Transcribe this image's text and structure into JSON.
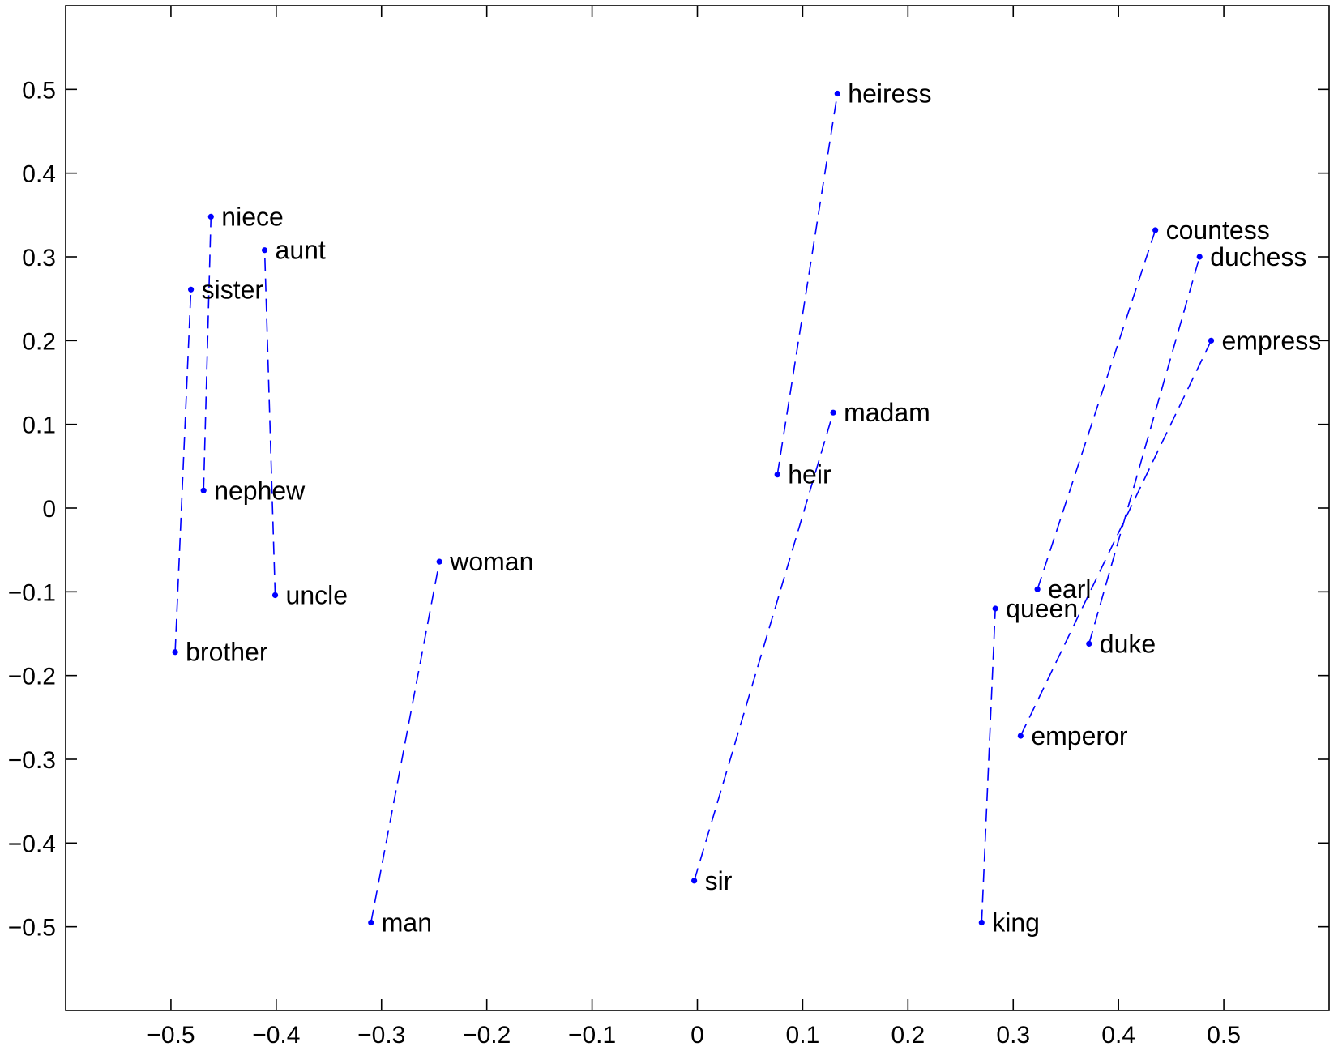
{
  "chart_data": {
    "type": "scatter",
    "title": "",
    "xlabel": "",
    "ylabel": "",
    "xlim": [
      -0.6,
      0.6
    ],
    "ylim": [
      -0.6,
      0.6
    ],
    "xticks": [
      -0.5,
      -0.4,
      -0.3,
      -0.2,
      -0.1,
      0,
      0.1,
      0.2,
      0.3,
      0.4,
      0.5
    ],
    "yticks": [
      -0.5,
      -0.4,
      -0.3,
      -0.2,
      -0.1,
      0,
      0.1,
      0.2,
      0.3,
      0.4,
      0.5
    ],
    "xtick_labels": [
      "−0.5",
      "−0.4",
      "−0.3",
      "−0.2",
      "−0.1",
      "0",
      "0.1",
      "0.2",
      "0.3",
      "0.4",
      "0.5"
    ],
    "ytick_labels": [
      "−0.5",
      "−0.4",
      "−0.3",
      "−0.2",
      "−0.1",
      "0",
      "0.1",
      "0.2",
      "0.3",
      "0.4",
      "0.5"
    ],
    "grid": false,
    "box": true,
    "point_color": "#0000ff",
    "line_color": "#0000ff",
    "line_style": "dashed",
    "points": [
      {
        "label": "heiress",
        "x": 0.133,
        "y": 0.495
      },
      {
        "label": "niece",
        "x": -0.462,
        "y": 0.348
      },
      {
        "label": "aunt",
        "x": -0.411,
        "y": 0.308
      },
      {
        "label": "sister",
        "x": -0.481,
        "y": 0.261
      },
      {
        "label": "countess",
        "x": 0.435,
        "y": 0.332
      },
      {
        "label": "duchess",
        "x": 0.477,
        "y": 0.3
      },
      {
        "label": "empress",
        "x": 0.488,
        "y": 0.2
      },
      {
        "label": "madam",
        "x": 0.129,
        "y": 0.114
      },
      {
        "label": "heir",
        "x": 0.076,
        "y": 0.04
      },
      {
        "label": "nephew",
        "x": -0.469,
        "y": 0.021
      },
      {
        "label": "woman",
        "x": -0.245,
        "y": -0.064
      },
      {
        "label": "uncle",
        "x": -0.401,
        "y": -0.104
      },
      {
        "label": "brother",
        "x": -0.496,
        "y": -0.172
      },
      {
        "label": "earl",
        "x": 0.323,
        "y": -0.097
      },
      {
        "label": "queen",
        "x": 0.283,
        "y": -0.12
      },
      {
        "label": "duke",
        "x": 0.372,
        "y": -0.162
      },
      {
        "label": "emperor",
        "x": 0.307,
        "y": -0.272
      },
      {
        "label": "sir",
        "x": -0.003,
        "y": -0.445
      },
      {
        "label": "man",
        "x": -0.31,
        "y": -0.495
      },
      {
        "label": "king",
        "x": 0.27,
        "y": -0.495
      }
    ],
    "pairs": [
      [
        "man",
        "woman"
      ],
      [
        "brother",
        "sister"
      ],
      [
        "nephew",
        "niece"
      ],
      [
        "uncle",
        "aunt"
      ],
      [
        "heir",
        "heiress"
      ],
      [
        "sir",
        "madam"
      ],
      [
        "king",
        "queen"
      ],
      [
        "earl",
        "countess"
      ],
      [
        "duke",
        "duchess"
      ],
      [
        "emperor",
        "empress"
      ]
    ]
  }
}
